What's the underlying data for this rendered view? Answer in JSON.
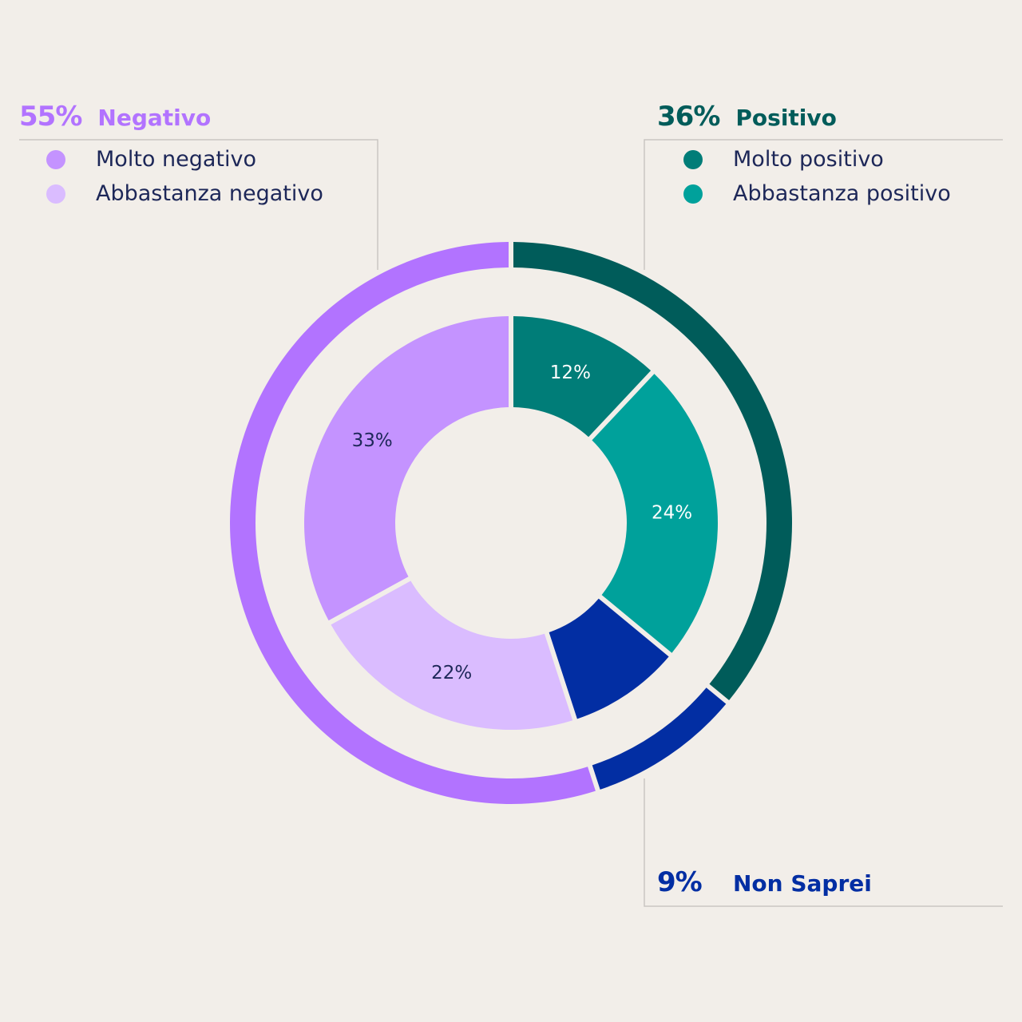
{
  "chart_data": {
    "type": "pie",
    "variant": "nested-donut",
    "inner_ring": [
      {
        "label": "Molto positivo",
        "value": 12,
        "value_label": "12%",
        "color": "#007d78",
        "label_color": "#ffffff"
      },
      {
        "label": "Abbastanza positivo",
        "value": 24,
        "value_label": "24%",
        "color": "#00a19b",
        "label_color": "#ffffff"
      },
      {
        "label": "Non Saprei",
        "value": 9,
        "value_label": "",
        "color": "#022ea3",
        "label_color": "#ffffff"
      },
      {
        "label": "Abbastanza negativo",
        "value": 22,
        "value_label": "22%",
        "color": "#dabcff",
        "label_color": "#1d2758"
      },
      {
        "label": "Molto negativo",
        "value": 33,
        "value_label": "33%",
        "color": "#c493ff",
        "label_color": "#1d2758"
      }
    ],
    "outer_ring": [
      {
        "label": "Positivo",
        "value": 36,
        "color": "#005c5a"
      },
      {
        "label": "Non Saprei",
        "value": 9,
        "color": "#022ea3"
      },
      {
        "label": "Negativo",
        "value": 55,
        "color": "#b273ff"
      }
    ]
  },
  "groups": {
    "negative": {
      "pct": "55%",
      "name": "Negativo",
      "color": "#b273ff",
      "items": [
        {
          "label": "Molto negativo",
          "color": "#c493ff"
        },
        {
          "label": "Abbastanza negativo",
          "color": "#dabcff"
        }
      ]
    },
    "positive": {
      "pct": "36%",
      "name": "Positivo",
      "color": "#005c5a",
      "items": [
        {
          "label": "Molto positivo",
          "color": "#007d78"
        },
        {
          "label": "Abbastanza positivo",
          "color": "#00a19b"
        }
      ]
    },
    "unknown": {
      "pct": "9%",
      "name": "Non Saprei",
      "color": "#022ea3"
    }
  }
}
